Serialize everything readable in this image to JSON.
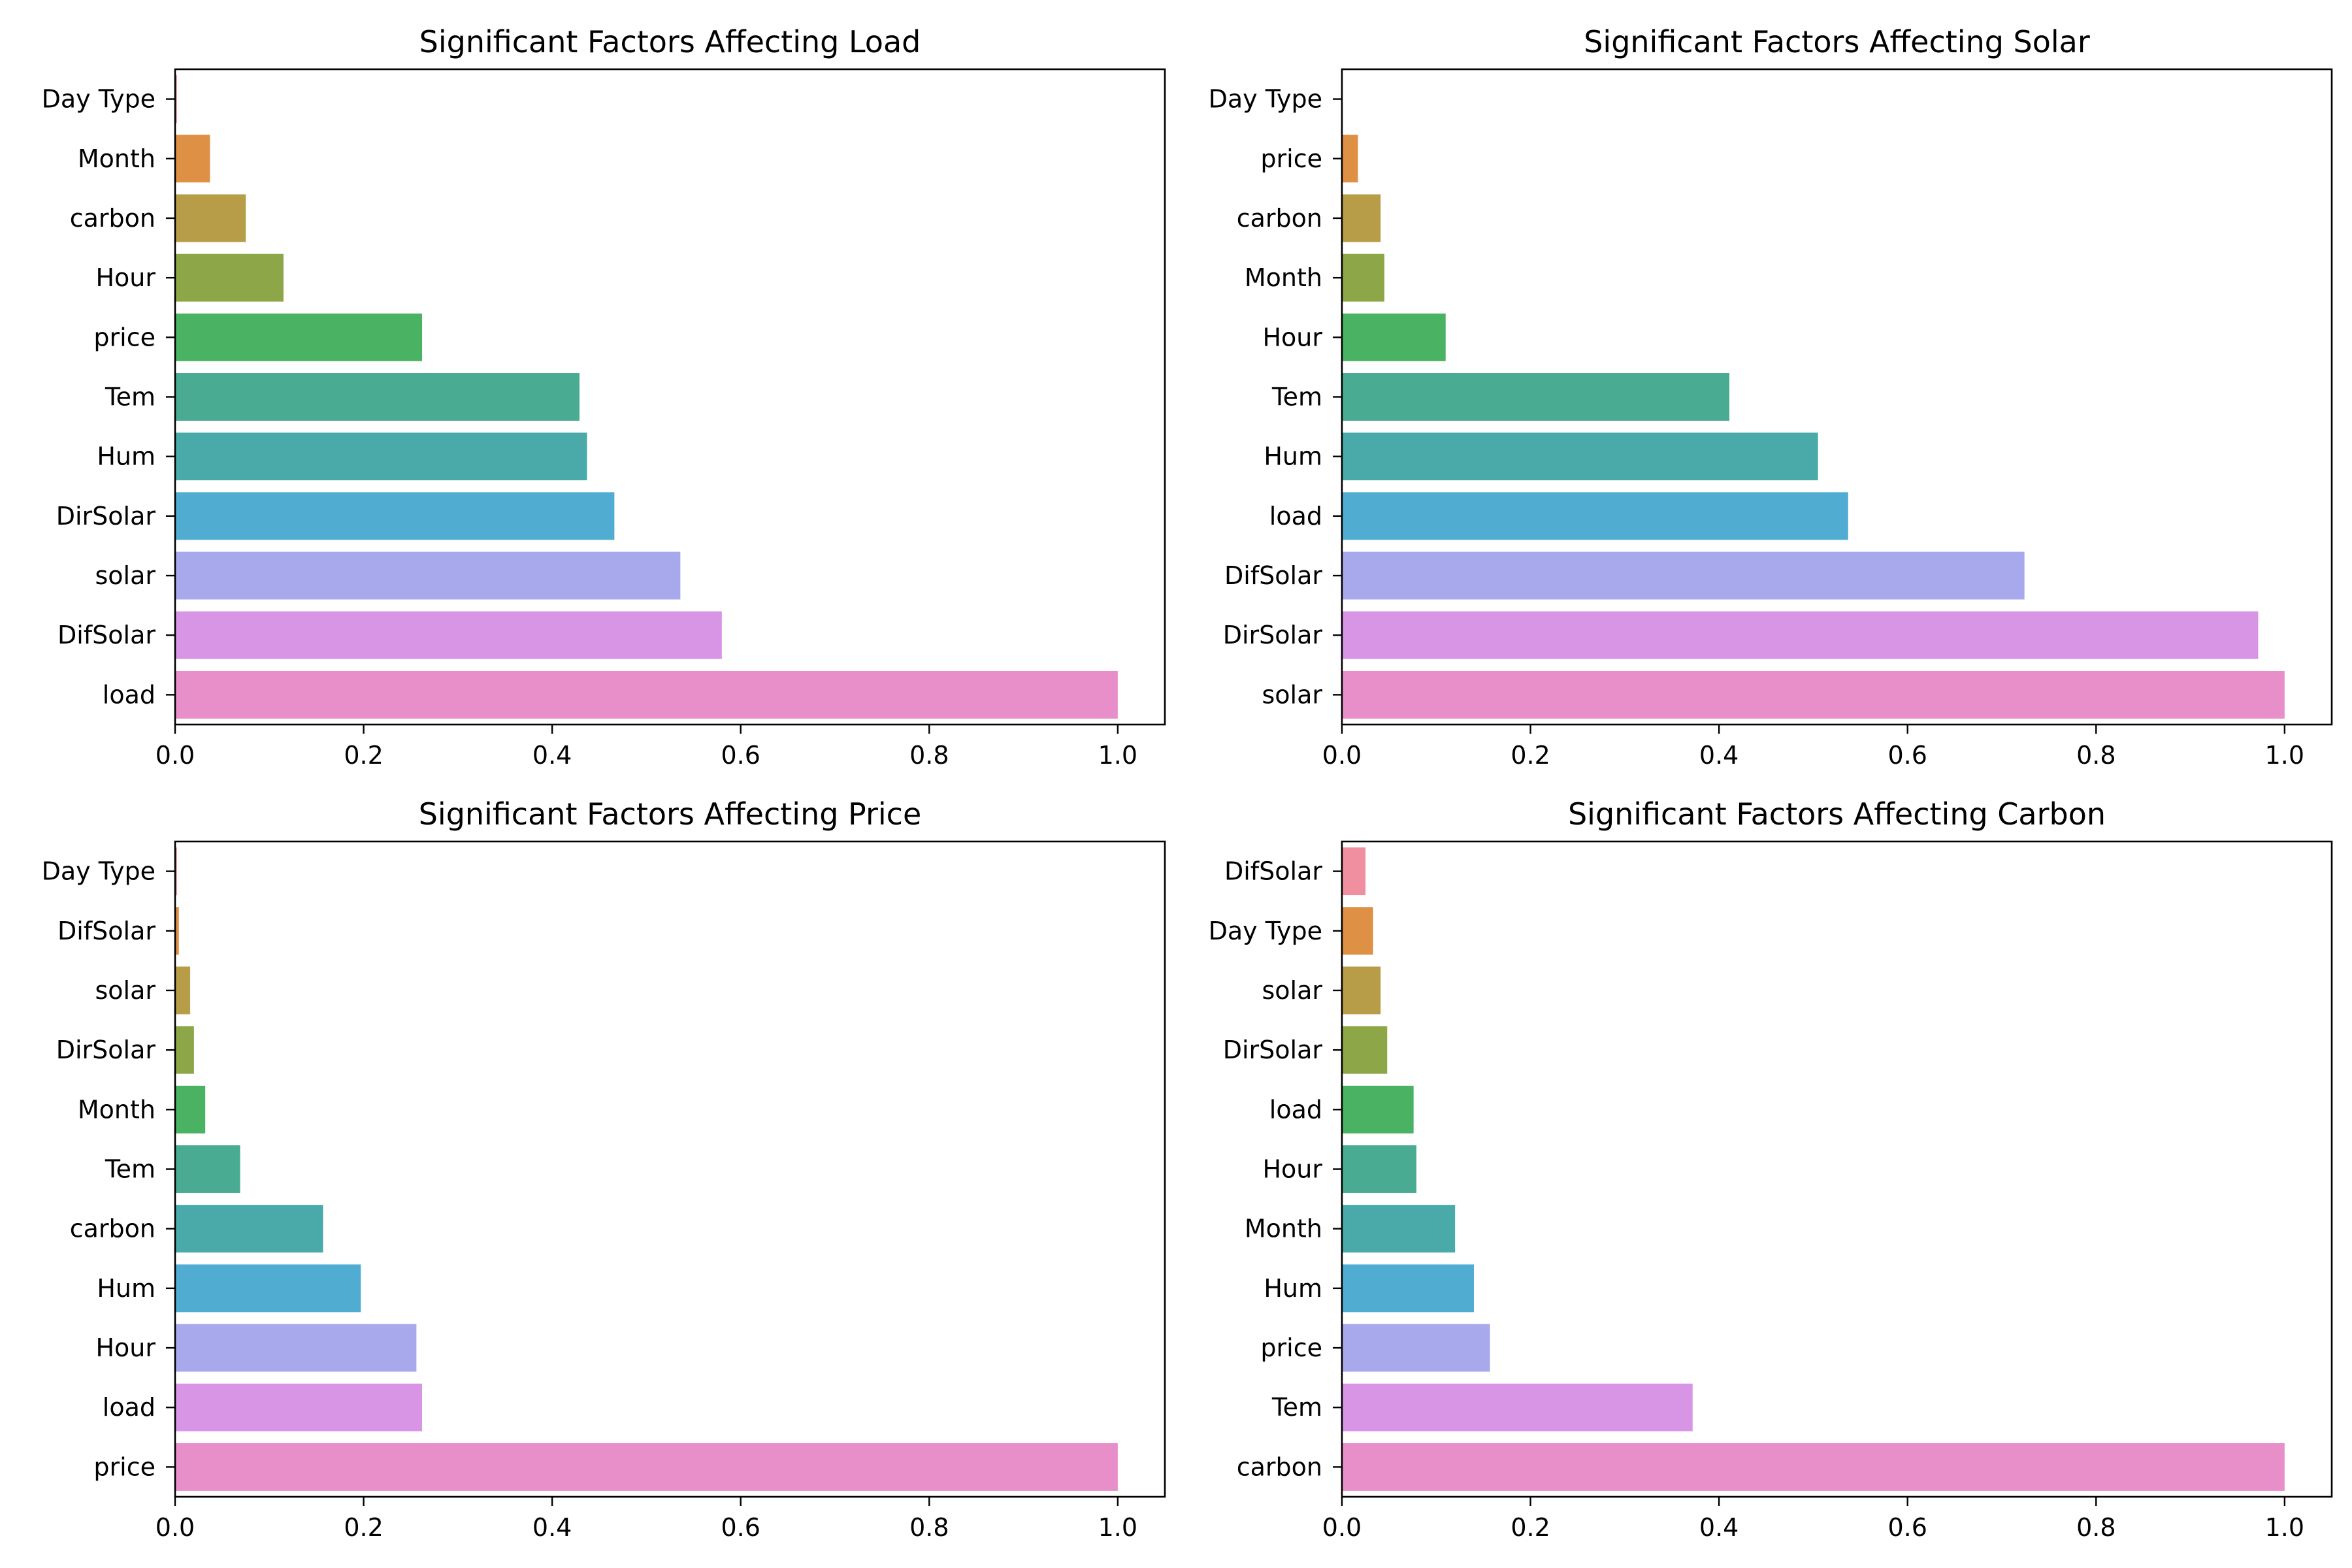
{
  "chart_data": [
    {
      "type": "bar",
      "orientation": "horizontal",
      "title": "Significant Factors Affecting Load",
      "xlabel": "",
      "ylabel": "",
      "xlim": [
        0,
        1.05
      ],
      "xticks": [
        "0.0",
        "0.2",
        "0.4",
        "0.6",
        "0.8",
        "1.0"
      ],
      "grid": false,
      "categories": [
        "Day Type",
        "Month",
        "carbon",
        "Hour",
        "price",
        "Tem",
        "Hum",
        "DirSolar",
        "solar",
        "DifSolar",
        "load"
      ],
      "values": [
        0.002,
        0.037,
        0.075,
        0.115,
        0.262,
        0.429,
        0.437,
        0.466,
        0.536,
        0.58,
        1.0
      ]
    },
    {
      "type": "bar",
      "orientation": "horizontal",
      "title": "Significant Factors Affecting Solar",
      "xlabel": "",
      "ylabel": "",
      "xlim": [
        0,
        1.05
      ],
      "xticks": [
        "0.0",
        "0.2",
        "0.4",
        "0.6",
        "0.8",
        "1.0"
      ],
      "grid": false,
      "categories": [
        "Day Type",
        "price",
        "carbon",
        "Month",
        "Hour",
        "Tem",
        "Hum",
        "load",
        "DifSolar",
        "DirSolar",
        "solar"
      ],
      "values": [
        0.0,
        0.017,
        0.041,
        0.045,
        0.11,
        0.411,
        0.505,
        0.537,
        0.724,
        0.972,
        1.0
      ]
    },
    {
      "type": "bar",
      "orientation": "horizontal",
      "title": "Significant Factors Affecting Price",
      "xlabel": "",
      "ylabel": "",
      "xlim": [
        0,
        1.05
      ],
      "xticks": [
        "0.0",
        "0.2",
        "0.4",
        "0.6",
        "0.8",
        "1.0"
      ],
      "grid": false,
      "categories": [
        "Day Type",
        "DifSolar",
        "solar",
        "DirSolar",
        "Month",
        "Tem",
        "carbon",
        "Hum",
        "Hour",
        "load",
        "price"
      ],
      "values": [
        0.002,
        0.004,
        0.016,
        0.02,
        0.032,
        0.069,
        0.157,
        0.197,
        0.256,
        0.262,
        1.0
      ]
    },
    {
      "type": "bar",
      "orientation": "horizontal",
      "title": "Significant Factors Affecting Carbon",
      "xlabel": "",
      "ylabel": "",
      "xlim": [
        0,
        1.05
      ],
      "xticks": [
        "0.0",
        "0.2",
        "0.4",
        "0.6",
        "0.8",
        "1.0"
      ],
      "grid": false,
      "categories": [
        "DifSolar",
        "Day Type",
        "solar",
        "DirSolar",
        "load",
        "Hour",
        "Month",
        "Hum",
        "price",
        "Tem",
        "carbon"
      ],
      "values": [
        0.025,
        0.033,
        0.041,
        0.048,
        0.076,
        0.079,
        0.12,
        0.14,
        0.157,
        0.372,
        1.0
      ]
    }
  ],
  "colors": [
    "#f08fa0",
    "#de9045",
    "#b89d48",
    "#8da647",
    "#4ab263",
    "#4aab93",
    "#4aaaaa",
    "#51acd2",
    "#a8a8ec",
    "#d895e6",
    "#e88ec8"
  ]
}
